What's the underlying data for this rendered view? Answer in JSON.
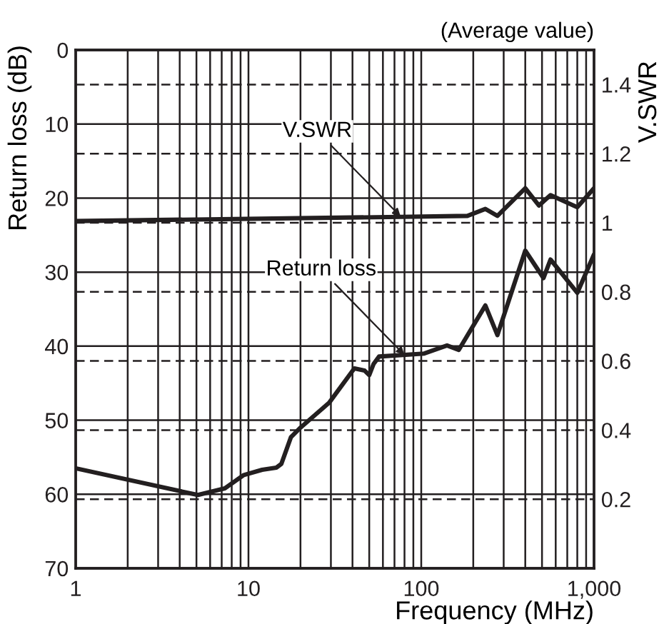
{
  "chart_data": {
    "type": "line",
    "xlabel": "Frequency (MHz)",
    "ylabel": "Return loss (dB)",
    "y2label": "V.SWR",
    "annotations": [
      "(Average value)",
      {
        "text": "V.SWR",
        "x": 76,
        "y": 22.5
      },
      {
        "text": "Return loss",
        "x": 80,
        "y": 41.2
      }
    ],
    "log": "x",
    "xlim": [
      1,
      1000
    ],
    "xticks": [
      1,
      {
        "value": 2,
        "label": null
      },
      {
        "value": 3,
        "label": null
      },
      {
        "value": 4,
        "label": null
      },
      {
        "value": 5,
        "label": null
      },
      {
        "value": 6,
        "label": null
      },
      {
        "value": 7,
        "label": null
      },
      {
        "value": 8,
        "label": null
      },
      {
        "value": 9,
        "label": null
      },
      10,
      {
        "value": 20,
        "label": null
      },
      {
        "value": 30,
        "label": null
      },
      {
        "value": 40,
        "label": null
      },
      {
        "value": 50,
        "label": null
      },
      {
        "value": 60,
        "label": null
      },
      {
        "value": 70,
        "label": null
      },
      {
        "value": 80,
        "label": null
      },
      {
        "value": 90,
        "label": null
      },
      100,
      {
        "value": 200,
        "label": null
      },
      {
        "value": 300,
        "label": null
      },
      {
        "value": 400,
        "label": null
      },
      {
        "value": 500,
        "label": null
      },
      {
        "value": 600,
        "label": null
      },
      {
        "value": 700,
        "label": null
      },
      {
        "value": 800,
        "label": null
      },
      {
        "value": 900,
        "label": null
      },
      {
        "value": 1000,
        "label": "1,000"
      }
    ],
    "ylim": [
      70,
      0
    ],
    "yticks": [
      0,
      10,
      20,
      30,
      40,
      50,
      60,
      70
    ],
    "y2lim": [
      0,
      1.5
    ],
    "y2ticks": [
      0.2,
      0.4,
      0.6,
      0.8,
      1,
      1.2,
      1.4
    ],
    "grid": true,
    "marker": "none",
    "line_style": "solid",
    "series": [
      {
        "color": "#231f20",
        "x": [
          1,
          5.1,
          7.3,
          9.4,
          12,
          14.5,
          15.5,
          17.6,
          20,
          29.4,
          41,
          47,
          50,
          53,
          57,
          104,
          141,
          165,
          235,
          276,
          400,
          510,
          560,
          800,
          1000
        ],
        "values": [
          56.5,
          60.1,
          59.2,
          57.4,
          56.7,
          56.4,
          55.9,
          52.3,
          51,
          47.6,
          43,
          43.3,
          43.9,
          42.4,
          41.4,
          41,
          39.9,
          40.5,
          34.5,
          38.5,
          27.1,
          30.8,
          28.3,
          32.8,
          27.6
        ]
      },
      {
        "color": "#231f20",
        "axis": "y2",
        "x": [
          1,
          76,
          185,
          235,
          276,
          400,
          480,
          560,
          800,
          1000
        ],
        "values": [
          1.005,
          1.017,
          1.02,
          1.04,
          1.02,
          1.1,
          1.05,
          1.08,
          1.045,
          1.1
        ]
      }
    ]
  }
}
